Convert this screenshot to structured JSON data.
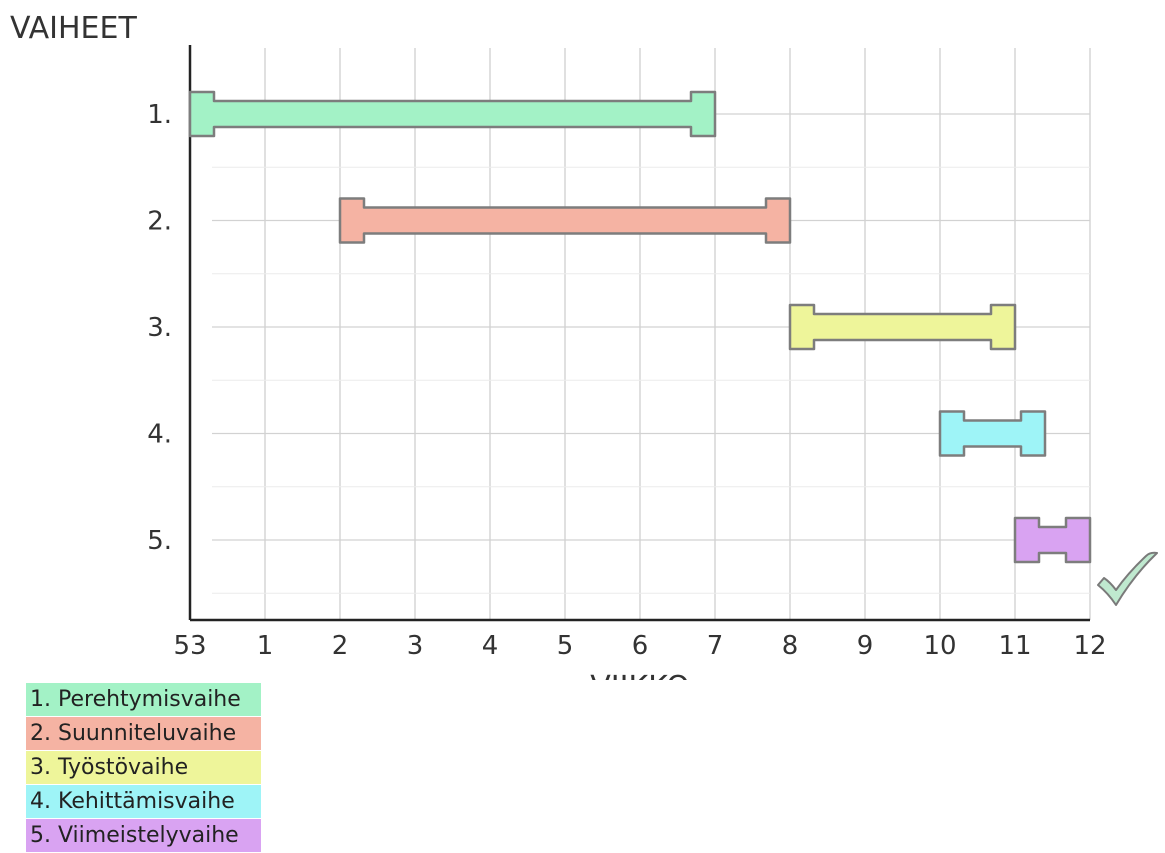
{
  "chart_data": {
    "type": "gantt",
    "ylabel": "VAIHEET",
    "xlabel": "VIIKKO",
    "x_ticks": [
      "53",
      "1",
      "2",
      "3",
      "4",
      "5",
      "6",
      "7",
      "8",
      "9",
      "10",
      "11",
      "12"
    ],
    "y_ticks": [
      "1.",
      "2.",
      "3.",
      "4.",
      "5."
    ],
    "grid": true,
    "bars": [
      {
        "row": "1.",
        "start_index": 0,
        "end_index": 7,
        "color": "#a3f2c6"
      },
      {
        "row": "2.",
        "start_index": 2,
        "end_index": 8,
        "color": "#f5b3a3"
      },
      {
        "row": "3.",
        "start_index": 8,
        "end_index": 11,
        "color": "#eef59a"
      },
      {
        "row": "4.",
        "start_index": 10,
        "end_index": 11.4,
        "color": "#9ef4f7"
      },
      {
        "row": "5.",
        "start_index": 11,
        "end_index": 12,
        "color": "#d9a3f2"
      }
    ],
    "legend": {
      "placement": "bottom-left",
      "items": [
        {
          "label": "1. Perehtymisvaihe",
          "color": "#a3f2c6"
        },
        {
          "label": "2. Suunniteluvaihe",
          "color": "#f5b3a3"
        },
        {
          "label": "3. Työstövaihe",
          "color": "#eef59a"
        },
        {
          "label": "4. Kehittämisvaihe",
          "color": "#9ef4f7"
        },
        {
          "label": "5. Viimeistelyvaihe",
          "color": "#d9a3f2"
        }
      ]
    },
    "annotation": {
      "icon": "checkmark-icon",
      "color": "#7fc9a0"
    }
  }
}
